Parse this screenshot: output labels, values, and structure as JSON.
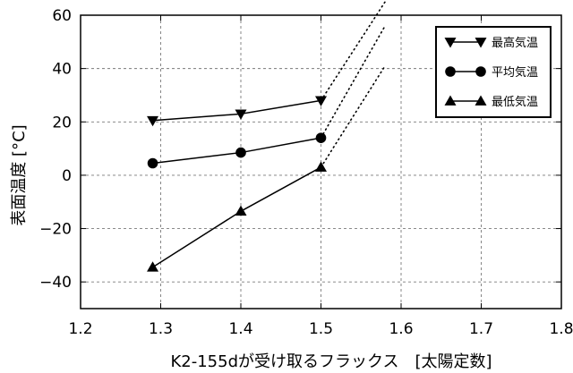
{
  "chart_data": {
    "type": "line",
    "xlabel": "K2-155dが受け取るフラックス　[太陽定数]",
    "ylabel": "表面温度 [°C]",
    "xlim": [
      1.2,
      1.8
    ],
    "ylim": [
      -50,
      60
    ],
    "x_ticks": [
      1.2,
      1.3,
      1.4,
      1.5,
      1.6,
      1.7,
      1.8
    ],
    "x_tick_labels": [
      "1.2",
      "1.3",
      "1.4",
      "1.5",
      "1.6",
      "1.7",
      "1.8"
    ],
    "y_ticks": [
      -40,
      -20,
      0,
      20,
      40,
      60
    ],
    "y_tick_labels": [
      "−40",
      "−20",
      "0",
      "20",
      "40",
      "60"
    ],
    "grid": true,
    "legend": "top-right",
    "colors": {
      "series": "#000000",
      "grid": "#7a7a7a",
      "frame": "#000000",
      "background": "#ffffff"
    },
    "series": [
      {
        "name": "最高気温",
        "marker": "triangle-down",
        "color": "#000000",
        "x": [
          1.29,
          1.4,
          1.5
        ],
        "y": [
          20.5,
          23,
          28
        ],
        "extrapolation": {
          "style": "dotted",
          "x": [
            1.5,
            1.58
          ],
          "y": [
            28,
            65
          ]
        }
      },
      {
        "name": "平均気温",
        "marker": "circle",
        "color": "#000000",
        "x": [
          1.29,
          1.4,
          1.5
        ],
        "y": [
          4.5,
          8.5,
          14
        ],
        "extrapolation": {
          "style": "dotted",
          "x": [
            1.5,
            1.58
          ],
          "y": [
            14,
            56
          ]
        }
      },
      {
        "name": "最低気温",
        "marker": "triangle-up",
        "color": "#000000",
        "x": [
          1.29,
          1.4,
          1.5
        ],
        "y": [
          -34.5,
          -13.5,
          3
        ],
        "extrapolation": {
          "style": "dotted",
          "x": [
            1.5,
            1.58
          ],
          "y": [
            3,
            41
          ]
        }
      }
    ]
  }
}
